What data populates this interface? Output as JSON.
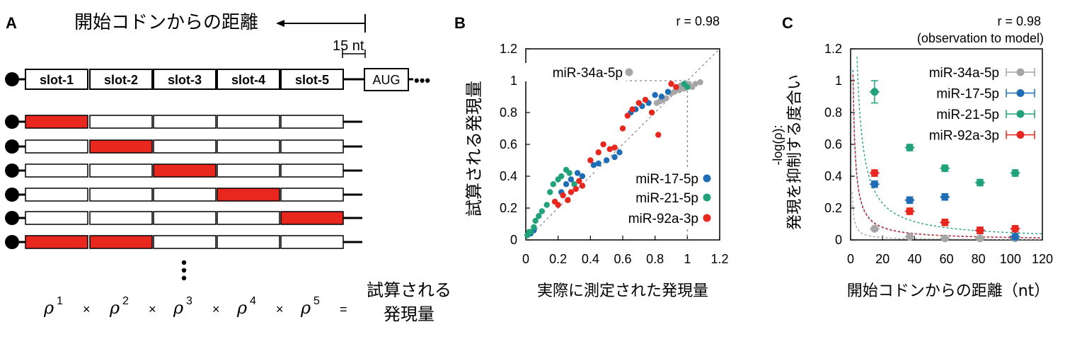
{
  "panelA": {
    "letter": "A",
    "distance_label": "開始コドンからの距離",
    "spacing_label": "15 nt",
    "slots": [
      "slot-1",
      "slot-2",
      "slot-3",
      "slot-4",
      "slot-5"
    ],
    "aug_label": "AUG",
    "ellipsis": "•••",
    "fill_color": "#e8271f",
    "rows": [
      [
        true,
        false,
        false,
        false,
        false
      ],
      [
        false,
        true,
        false,
        false,
        false
      ],
      [
        false,
        false,
        true,
        false,
        false
      ],
      [
        false,
        false,
        false,
        true,
        false
      ],
      [
        false,
        false,
        false,
        false,
        true
      ],
      [
        true,
        true,
        false,
        false,
        false
      ]
    ],
    "equation": {
      "rho": "ρ",
      "exponents": [
        "1",
        "2",
        "3",
        "4",
        "5"
      ],
      "times": "×",
      "equals": "=",
      "result_line1": "試算される",
      "result_line2": "発現量"
    }
  },
  "chart_data": [
    {
      "panel": "B",
      "type": "scatter",
      "annotation": "r = 0.98",
      "xlabel": "実際に測定された発現量",
      "ylabel": "試算される発現量",
      "xlim": [
        0,
        1.2
      ],
      "ylim": [
        0,
        1.2
      ],
      "xticks": [
        "0",
        "0.2",
        "0.4",
        "0.6",
        "0.8",
        "1",
        "1.2"
      ],
      "yticks": [
        "0",
        "0.2",
        "0.4",
        "0.6",
        "0.8",
        "1",
        "1.2"
      ],
      "reference_line": "y = x",
      "legend_placement": "right",
      "series": [
        {
          "name": "miR-34a-5p",
          "color": "#a6a6a6",
          "points": [
            [
              0.81,
              0.86
            ],
            [
              0.83,
              0.87
            ],
            [
              0.85,
              0.88
            ],
            [
              0.87,
              0.89
            ],
            [
              0.9,
              0.92
            ],
            [
              0.92,
              0.93
            ],
            [
              0.95,
              0.94
            ],
            [
              0.98,
              0.95
            ],
            [
              0.99,
              0.97
            ],
            [
              1.01,
              0.98
            ],
            [
              1.03,
              0.96
            ],
            [
              1.05,
              0.98
            ],
            [
              1.08,
              0.99
            ],
            [
              0.94,
              0.96
            ],
            [
              0.96,
              0.97
            ]
          ]
        },
        {
          "name": "miR-17-5p",
          "color": "#1f6db5",
          "points": [
            [
              0.03,
              0.04
            ],
            [
              0.05,
              0.06
            ],
            [
              0.22,
              0.3
            ],
            [
              0.25,
              0.35
            ],
            [
              0.28,
              0.38
            ],
            [
              0.32,
              0.42
            ],
            [
              0.35,
              0.4
            ],
            [
              0.42,
              0.47
            ],
            [
              0.45,
              0.48
            ],
            [
              0.5,
              0.5
            ],
            [
              0.55,
              0.52
            ],
            [
              0.58,
              0.55
            ],
            [
              0.65,
              0.8
            ],
            [
              0.68,
              0.82
            ],
            [
              0.72,
              0.84
            ],
            [
              0.76,
              0.86
            ],
            [
              0.8,
              0.91
            ],
            [
              0.84,
              0.9
            ],
            [
              0.88,
              0.93
            ]
          ]
        },
        {
          "name": "miR-21-5p",
          "color": "#22a27a",
          "points": [
            [
              0.01,
              0.03
            ],
            [
              0.02,
              0.05
            ],
            [
              0.03,
              0.05
            ],
            [
              0.05,
              0.08
            ],
            [
              0.06,
              0.12
            ],
            [
              0.08,
              0.15
            ],
            [
              0.1,
              0.18
            ],
            [
              0.13,
              0.22
            ],
            [
              0.15,
              0.3
            ],
            [
              0.17,
              0.35
            ],
            [
              0.2,
              0.38
            ],
            [
              0.22,
              0.4
            ],
            [
              0.25,
              0.44
            ],
            [
              0.27,
              0.42
            ],
            [
              0.3,
              0.35
            ],
            [
              0.98,
              0.98
            ],
            [
              1.0,
              0.96
            ]
          ]
        },
        {
          "name": "miR-92a-3p",
          "color": "#e8271f",
          "points": [
            [
              0.18,
              0.24
            ],
            [
              0.2,
              0.22
            ],
            [
              0.23,
              0.28
            ],
            [
              0.26,
              0.25
            ],
            [
              0.28,
              0.3
            ],
            [
              0.31,
              0.32
            ],
            [
              0.33,
              0.37
            ],
            [
              0.35,
              0.34
            ],
            [
              0.4,
              0.5
            ],
            [
              0.45,
              0.55
            ],
            [
              0.48,
              0.6
            ],
            [
              0.52,
              0.57
            ],
            [
              0.55,
              0.58
            ],
            [
              0.6,
              0.7
            ],
            [
              0.63,
              0.78
            ],
            [
              0.66,
              0.82
            ],
            [
              0.7,
              0.86
            ],
            [
              0.74,
              0.88
            ],
            [
              0.78,
              0.8
            ],
            [
              0.82,
              0.66
            ],
            [
              0.9,
              0.98
            ],
            [
              0.93,
              0.96
            ]
          ]
        }
      ]
    },
    {
      "panel": "C",
      "type": "scatter",
      "annotation_line1": "r = 0.98",
      "annotation_line2": "(observation to model)",
      "xlabel": "開始コドンからの距離（nt）",
      "ylabel_line1": "-log(ρ):",
      "ylabel_line2": "発現を抑制する度合い",
      "xlim": [
        0,
        120
      ],
      "ylim": [
        0,
        1.2
      ],
      "xticks": [
        "0",
        "20",
        "40",
        "60",
        "80",
        "100",
        "120"
      ],
      "yticks": [
        "0",
        "0.2",
        "0.4",
        "0.6",
        "0.8",
        "1",
        "1.2"
      ],
      "legend_placement": "top-right",
      "series": [
        {
          "name": "miR-34a-5p",
          "color": "#a6a6a6",
          "fit_amplitude": 0.3,
          "x": [
            15,
            37,
            59,
            81,
            103
          ],
          "y": [
            0.07,
            0.02,
            0.01,
            0.01,
            0.01
          ],
          "err": [
            0.01,
            0.01,
            0.01,
            0.01,
            0.01
          ]
        },
        {
          "name": "miR-17-5p",
          "color": "#1f6db5",
          "fit_amplitude": 1.6,
          "x": [
            15,
            37,
            59,
            81,
            103
          ],
          "y": [
            0.35,
            0.25,
            0.27,
            0.06,
            0.02
          ],
          "err": [
            0.02,
            0.02,
            0.02,
            0.02,
            0.02
          ]
        },
        {
          "name": "miR-21-5p",
          "color": "#22a27a",
          "fit_amplitude": 4.6,
          "x": [
            15,
            37,
            59,
            81,
            103
          ],
          "y": [
            0.93,
            0.58,
            0.45,
            0.36,
            0.42
          ],
          "err": [
            0.07,
            0.02,
            0.02,
            0.02,
            0.02
          ]
        },
        {
          "name": "miR-92a-3p",
          "color": "#e8271f",
          "fit_amplitude": 1.55,
          "x": [
            15,
            37,
            59,
            81,
            103
          ],
          "y": [
            0.42,
            0.18,
            0.11,
            0.06,
            0.07
          ],
          "err": [
            0.02,
            0.02,
            0.02,
            0.02,
            0.02
          ]
        }
      ]
    }
  ]
}
